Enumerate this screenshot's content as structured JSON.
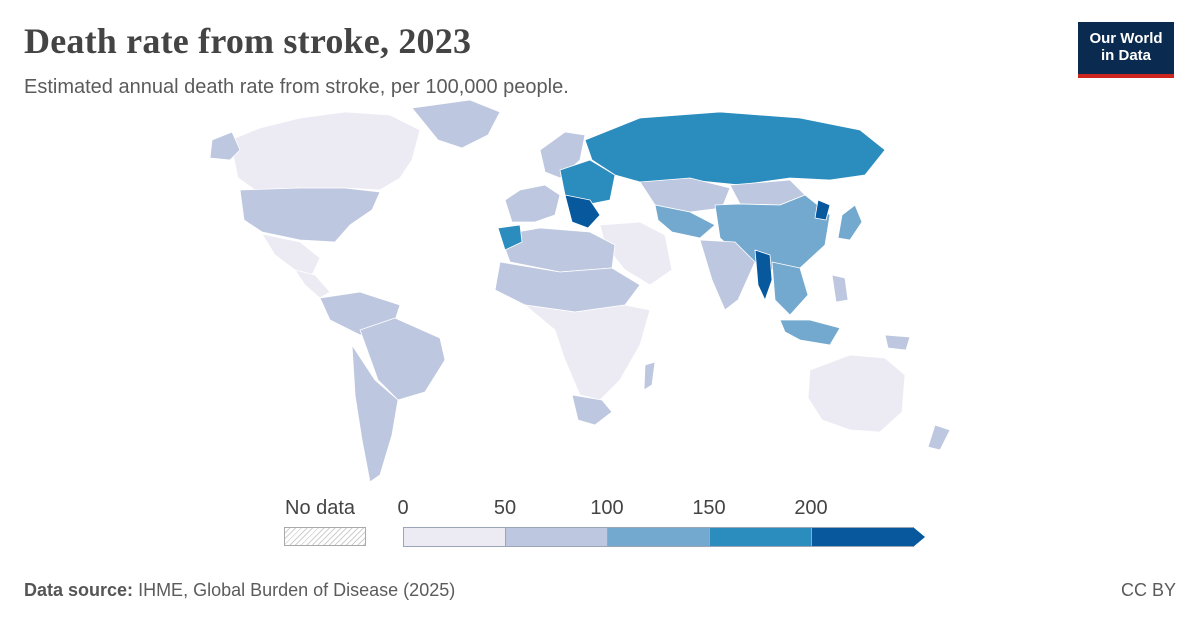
{
  "header": {
    "title": "Death rate from stroke, 2023",
    "subtitle": "Estimated annual death rate from stroke, per 100,000 people."
  },
  "logo": {
    "line1": "Our World",
    "line2": "in Data"
  },
  "legend": {
    "no_data_label": "No data",
    "ticks": [
      "0",
      "50",
      "100",
      "150",
      "200"
    ],
    "bins": [
      {
        "range": "0-50",
        "color": "#eceaf3"
      },
      {
        "range": "50-100",
        "color": "#bdc7df"
      },
      {
        "range": "100-150",
        "color": "#74a9cf"
      },
      {
        "range": "150-200",
        "color": "#2b8cbe"
      },
      {
        "range": ">200",
        "color": "#08589e"
      }
    ]
  },
  "colors": {
    "low": "#eceaf3",
    "mid_low": "#bdc7df",
    "mid": "#74a9cf",
    "high": "#2b8cbe",
    "very_high": "#08589e",
    "border": "#ffffff",
    "logo_bg": "#0b2a4f",
    "logo_accent": "#ce261e"
  },
  "regions": [
    {
      "name": "Canada",
      "class": "low"
    },
    {
      "name": "United States",
      "class": "mid_low"
    },
    {
      "name": "Greenland",
      "class": "mid_low"
    },
    {
      "name": "Alaska",
      "class": "mid_low"
    },
    {
      "name": "Mexico",
      "class": "low"
    },
    {
      "name": "Central America & Caribbean",
      "class": "low"
    },
    {
      "name": "Northern South America",
      "class": "mid_low"
    },
    {
      "name": "Brazil",
      "class": "mid_low"
    },
    {
      "name": "Southern Cone",
      "class": "mid_low"
    },
    {
      "name": "Western Europe",
      "class": "mid_low"
    },
    {
      "name": "Scandinavia",
      "class": "mid_low"
    },
    {
      "name": "Eastern Europe",
      "class": "high"
    },
    {
      "name": "Balkans",
      "class": "very_high"
    },
    {
      "name": "Russia",
      "class": "high"
    },
    {
      "name": "Kazakhstan",
      "class": "mid_low"
    },
    {
      "name": "Central Asia",
      "class": "mid"
    },
    {
      "name": "Mongolia",
      "class": "mid_low"
    },
    {
      "name": "China",
      "class": "mid"
    },
    {
      "name": "North Korea",
      "class": "very_high"
    },
    {
      "name": "Japan",
      "class": "mid"
    },
    {
      "name": "Middle East",
      "class": "low"
    },
    {
      "name": "India",
      "class": "mid_low"
    },
    {
      "name": "Myanmar",
      "class": "very_high"
    },
    {
      "name": "Southeast Asia",
      "class": "mid"
    },
    {
      "name": "Indonesia",
      "class": "mid"
    },
    {
      "name": "Philippines",
      "class": "mid_low"
    },
    {
      "name": "North Africa",
      "class": "mid_low"
    },
    {
      "name": "Morocco",
      "class": "high"
    },
    {
      "name": "Sahel",
      "class": "mid_low"
    },
    {
      "name": "Sub-Saharan Africa",
      "class": "low"
    },
    {
      "name": "South Africa",
      "class": "mid_low"
    },
    {
      "name": "Madagascar",
      "class": "mid_low"
    },
    {
      "name": "Australia",
      "class": "low"
    },
    {
      "name": "New Zealand",
      "class": "mid_low"
    },
    {
      "name": "Papua New Guinea",
      "class": "mid_low"
    }
  ],
  "footer": {
    "source_label": "Data source:",
    "source_text": "IHME, Global Burden of Disease (2025)",
    "license": "CC BY"
  }
}
